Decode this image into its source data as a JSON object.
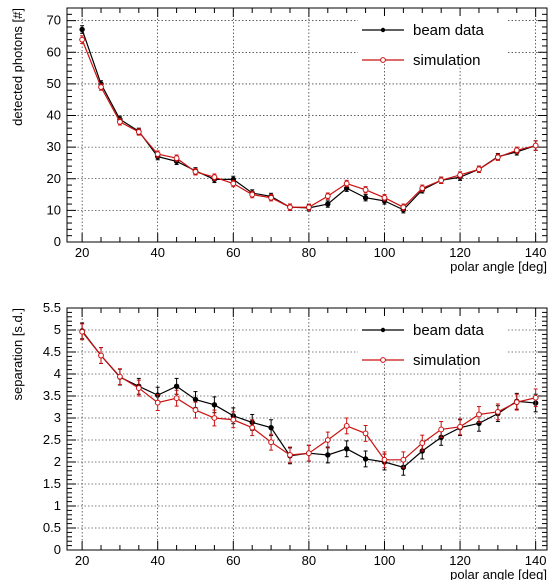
{
  "chart_data": [
    {
      "type": "line",
      "xlabel": "polar angle [deg]",
      "ylabel": "detected photons [#]",
      "xlim": [
        16,
        143
      ],
      "ylim": [
        0,
        74
      ],
      "xticks": [
        20,
        40,
        60,
        80,
        100,
        120,
        140
      ],
      "yticks": [
        0,
        10,
        20,
        30,
        40,
        50,
        60,
        70
      ],
      "grid": true,
      "legend_position": "top-right",
      "x": [
        20,
        25,
        30,
        35,
        40,
        45,
        50,
        55,
        60,
        65,
        70,
        75,
        80,
        85,
        90,
        95,
        100,
        105,
        110,
        115,
        120,
        125,
        130,
        135,
        140
      ],
      "series": [
        {
          "name": "beam data",
          "color": "#000000",
          "marker": "filled",
          "values": [
            67.2,
            50.0,
            38.8,
            35.0,
            27.0,
            25.5,
            22.5,
            19.8,
            19.8,
            15.5,
            14.4,
            11.0,
            10.8,
            12.0,
            17.0,
            14.0,
            13.0,
            10.2,
            16.5,
            19.5,
            20.5,
            23.0,
            27.0,
            28.5,
            30.5
          ],
          "errors": [
            1.2,
            1.0,
            1.0,
            1.0,
            1.0,
            1.0,
            1.0,
            1.0,
            1.0,
            1.0,
            1.0,
            1.0,
            1.0,
            1.0,
            1.0,
            1.0,
            1.0,
            1.0,
            1.0,
            1.0,
            1.0,
            1.0,
            1.0,
            1.0,
            1.5
          ]
        },
        {
          "name": "simulation",
          "color": "#cc1111",
          "marker": "open",
          "values": [
            64.0,
            49.0,
            38.0,
            34.8,
            27.8,
            26.5,
            22.2,
            20.5,
            18.5,
            15.0,
            14.0,
            11.0,
            11.0,
            14.5,
            18.5,
            16.5,
            14.0,
            11.0,
            17.0,
            19.5,
            21.2,
            23.0,
            26.8,
            29.0,
            30.5
          ],
          "errors": [
            1.2,
            1.0,
            1.0,
            1.0,
            1.0,
            1.0,
            1.0,
            1.0,
            1.0,
            1.0,
            1.0,
            1.0,
            1.0,
            1.0,
            1.0,
            1.0,
            1.0,
            1.0,
            1.0,
            1.0,
            1.0,
            1.0,
            1.0,
            1.0,
            1.5
          ]
        }
      ]
    },
    {
      "type": "line",
      "xlabel": "polar angle [deg]",
      "ylabel": "separation [s.d.]",
      "xlim": [
        16,
        143
      ],
      "ylim": [
        0,
        5.5
      ],
      "xticks": [
        20,
        40,
        60,
        80,
        100,
        120,
        140
      ],
      "yticks": [
        0,
        0.5,
        1,
        1.5,
        2,
        2.5,
        3,
        3.5,
        4,
        4.5,
        5,
        5.5
      ],
      "grid": true,
      "legend_position": "top-right",
      "x": [
        20,
        25,
        30,
        35,
        40,
        45,
        50,
        55,
        60,
        65,
        70,
        75,
        80,
        85,
        90,
        95,
        100,
        105,
        110,
        115,
        120,
        125,
        130,
        135,
        140
      ],
      "series": [
        {
          "name": "beam data",
          "color": "#000000",
          "marker": "filled",
          "values": [
            4.98,
            4.42,
            3.93,
            3.72,
            3.52,
            3.72,
            3.42,
            3.3,
            3.05,
            2.9,
            2.78,
            2.14,
            2.2,
            2.16,
            2.3,
            2.07,
            2.0,
            1.88,
            2.25,
            2.56,
            2.78,
            2.88,
            3.1,
            3.38,
            3.34
          ],
          "errors": [
            0.18,
            0.18,
            0.18,
            0.18,
            0.18,
            0.18,
            0.18,
            0.18,
            0.18,
            0.18,
            0.18,
            0.18,
            0.18,
            0.18,
            0.18,
            0.18,
            0.18,
            0.18,
            0.18,
            0.18,
            0.18,
            0.18,
            0.18,
            0.18,
            0.2
          ]
        },
        {
          "name": "simulation",
          "color": "#cc1111",
          "marker": "open",
          "values": [
            4.96,
            4.42,
            3.94,
            3.68,
            3.35,
            3.45,
            3.18,
            3.0,
            2.96,
            2.78,
            2.45,
            2.16,
            2.2,
            2.5,
            2.82,
            2.65,
            2.05,
            2.05,
            2.43,
            2.74,
            2.8,
            3.08,
            3.14,
            3.36,
            3.46
          ],
          "errors": [
            0.18,
            0.18,
            0.18,
            0.18,
            0.18,
            0.18,
            0.18,
            0.18,
            0.18,
            0.18,
            0.18,
            0.18,
            0.18,
            0.18,
            0.18,
            0.18,
            0.18,
            0.18,
            0.18,
            0.18,
            0.18,
            0.18,
            0.18,
            0.18,
            0.2
          ]
        }
      ]
    }
  ]
}
